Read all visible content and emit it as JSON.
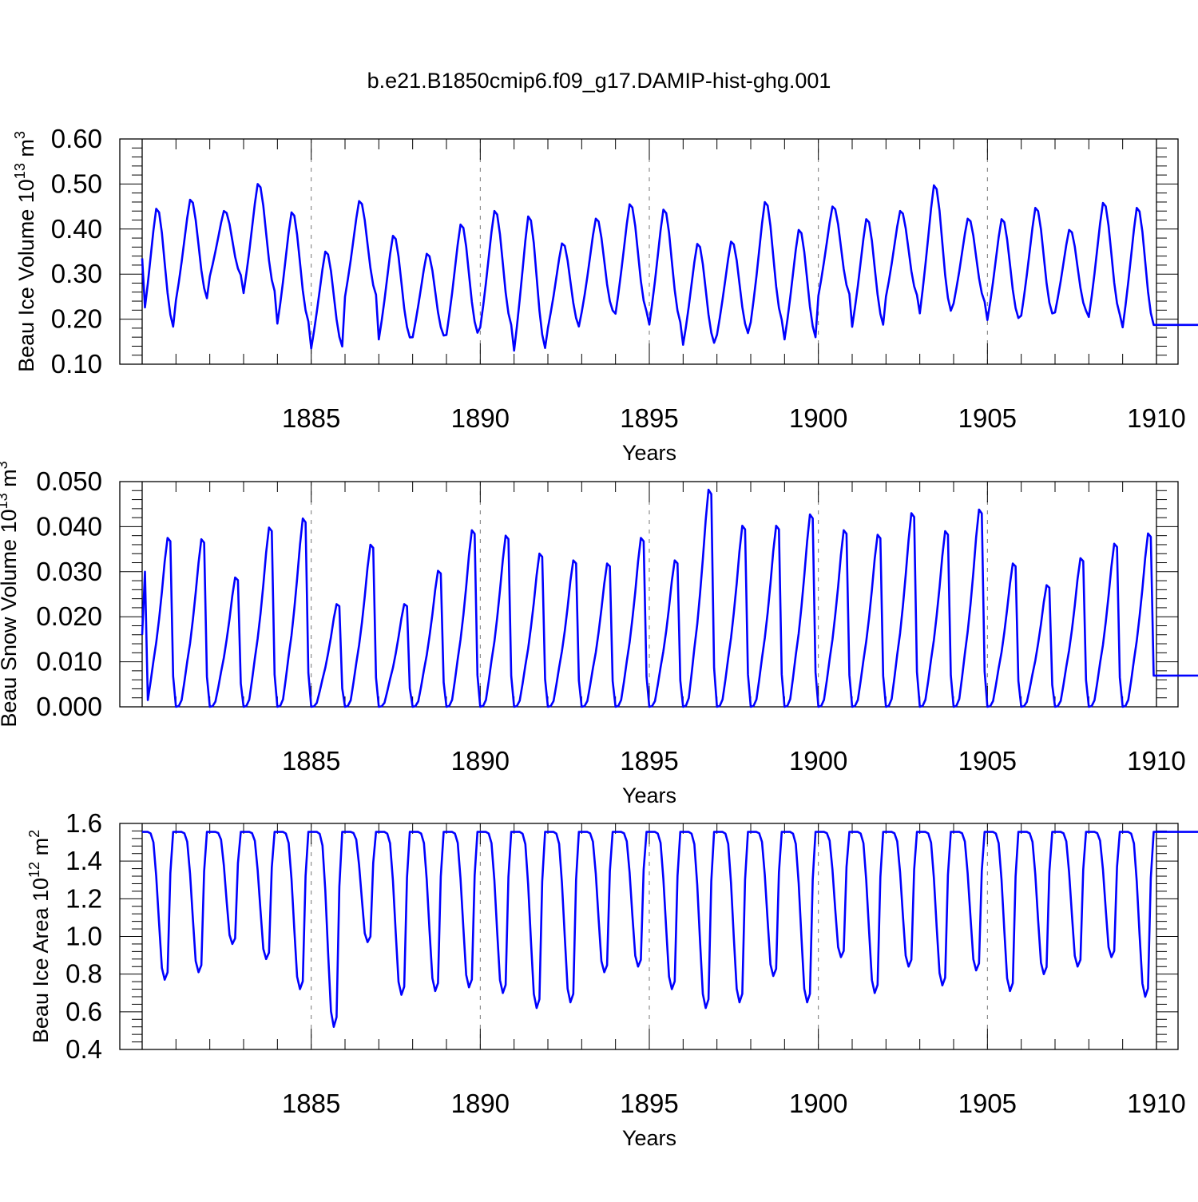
{
  "figure": {
    "title": "b.e21.B1850cmip6.f09_g17.DAMIP-hist-ghg.001"
  },
  "colors": {
    "series_line": "#0000ff",
    "axis": "#000000",
    "grid": "#777777",
    "background": "#ffffff"
  },
  "chart_data": [
    {
      "type": "line",
      "title": "b.e21.B1850cmip6.f09_g17.DAMIP-hist-ghg.001",
      "xlabel": "Years",
      "ylabel": {
        "prefix": "Beau Ice Volume 10",
        "sup": "13",
        "unit": " m",
        "unit_sup": "3"
      },
      "xlim": [
        1880,
        1910
      ],
      "ylim": [
        0.1,
        0.6
      ],
      "xticks": [
        1885,
        1890,
        1895,
        1900,
        1905,
        1910
      ],
      "xtick_labels": [
        "1885",
        "1890",
        "1895",
        "1900",
        "1905",
        "1910"
      ],
      "yticks": [
        0.1,
        0.2,
        0.3,
        0.4,
        0.5,
        0.6
      ],
      "ytick_labels": [
        "0.10",
        "0.20",
        "0.30",
        "0.40",
        "0.50",
        "0.60"
      ],
      "grid": "dashed vertical at major x ticks",
      "series": [
        {
          "name": "Beau Ice Volume",
          "maxima": [
            0.445,
            0.465,
            0.44,
            0.5,
            0.437,
            0.35,
            0.462,
            0.385,
            0.345,
            0.41,
            0.44,
            0.428,
            0.368,
            0.423,
            0.455,
            0.443,
            0.367,
            0.372,
            0.46,
            0.398,
            0.45,
            0.422,
            0.44,
            0.497,
            0.423,
            0.422,
            0.447,
            0.398,
            0.458,
            0.447
          ],
          "minima": [
            0.178,
            0.242,
            0.295,
            0.258,
            0.19,
            0.135,
            0.25,
            0.155,
            0.16,
            0.165,
            0.182,
            0.13,
            0.18,
            0.215,
            0.212,
            0.188,
            0.143,
            0.165,
            0.193,
            0.155,
            0.252,
            0.183,
            0.25,
            0.213,
            0.235,
            0.198,
            0.208,
            0.215,
            0.205,
            0.182
          ]
        }
      ]
    },
    {
      "type": "line",
      "xlabel": "Years",
      "ylabel": {
        "prefix": "Beau Snow Volume 10",
        "sup": "13",
        "unit": " m",
        "unit_sup": "3"
      },
      "xlim": [
        1880,
        1910
      ],
      "ylim": [
        0.0,
        0.05
      ],
      "xticks": [
        1885,
        1890,
        1895,
        1900,
        1905,
        1910
      ],
      "xtick_labels": [
        "1885",
        "1890",
        "1895",
        "1900",
        "1905",
        "1910"
      ],
      "yticks": [
        0.0,
        0.01,
        0.02,
        0.03,
        0.04,
        0.05
      ],
      "ytick_labels": [
        "0.000",
        "0.010",
        "0.020",
        "0.030",
        "0.040",
        "0.050"
      ],
      "grid": "dashed vertical at major x ticks",
      "series": [
        {
          "name": "Beau Snow Volume",
          "maxima": [
            0.0375,
            0.0372,
            0.0287,
            0.0398,
            0.0418,
            0.0228,
            0.036,
            0.0228,
            0.0302,
            0.0392,
            0.038,
            0.034,
            0.0325,
            0.0318,
            0.0375,
            0.0325,
            0.0482,
            0.0402,
            0.0402,
            0.0427,
            0.0392,
            0.0382,
            0.043,
            0.039,
            0.0438,
            0.0318,
            0.027,
            0.033,
            0.0362,
            0.0385
          ]
        }
      ]
    },
    {
      "type": "line",
      "xlabel": "Years",
      "ylabel": {
        "prefix": "Beau Ice Area 10",
        "sup": "12",
        "unit": " m",
        "unit_sup": "2"
      },
      "xlim": [
        1880,
        1910
      ],
      "ylim": [
        0.4,
        1.6
      ],
      "xticks": [
        1885,
        1890,
        1895,
        1900,
        1905,
        1910
      ],
      "xtick_labels": [
        "1885",
        "1890",
        "1895",
        "1900",
        "1905",
        "1910"
      ],
      "yticks": [
        0.4,
        0.6,
        0.8,
        1.0,
        1.2,
        1.4,
        1.6
      ],
      "ytick_labels": [
        "0.4",
        "0.6",
        "0.8",
        "1.0",
        "1.2",
        "1.4",
        "1.6"
      ],
      "grid": "dashed vertical at major x ticks",
      "series": [
        {
          "name": "Beau Ice Area",
          "maximum": 1.555,
          "minima": [
            0.77,
            0.81,
            0.96,
            0.88,
            0.72,
            0.52,
            0.97,
            0.69,
            0.71,
            0.73,
            0.7,
            0.62,
            0.65,
            0.81,
            0.84,
            0.72,
            0.62,
            0.65,
            0.79,
            0.65,
            0.89,
            0.7,
            0.84,
            0.74,
            0.82,
            0.71,
            0.8,
            0.84,
            0.89,
            0.68
          ],
          "end_value": 1.5
        }
      ]
    }
  ]
}
